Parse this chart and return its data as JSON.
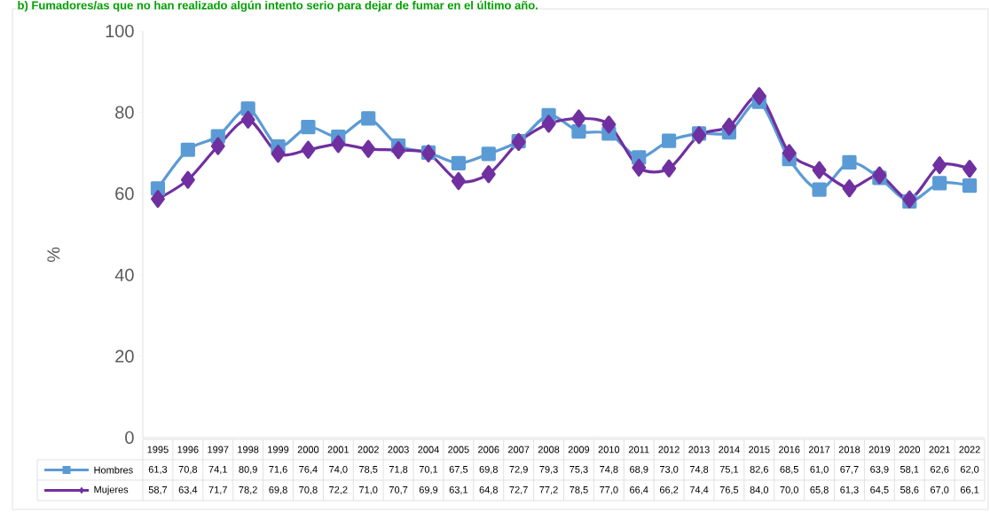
{
  "chart_data": {
    "type": "line",
    "title": "b) Fumadores/as que no han realizado algún intento serio para dejar de fumar en el último año.",
    "ylabel": "%",
    "categories": [
      "1995",
      "1996",
      "1997",
      "1998",
      "1999",
      "2000",
      "2001",
      "2002",
      "2003",
      "2004",
      "2005",
      "2006",
      "2007",
      "2008",
      "2009",
      "2010",
      "2011",
      "2012",
      "2013",
      "2014",
      "2015",
      "2016",
      "2017",
      "2018",
      "2019",
      "2020",
      "2021",
      "2022"
    ],
    "series": [
      {
        "name": "Hombres",
        "color": "#5b9bd5",
        "marker": "square",
        "values": [
          61.3,
          70.8,
          74.1,
          80.9,
          71.6,
          76.4,
          74.0,
          78.5,
          71.8,
          70.1,
          67.5,
          69.8,
          72.9,
          79.3,
          75.3,
          74.8,
          68.9,
          73.0,
          74.8,
          75.1,
          82.6,
          68.5,
          61.0,
          67.7,
          63.9,
          58.1,
          62.6,
          62.0
        ],
        "value_labels": [
          "61,3",
          "70,8",
          "74,1",
          "80,9",
          "71,6",
          "76,4",
          "74,0",
          "78,5",
          "71,8",
          "70,1",
          "67,5",
          "69,8",
          "72,9",
          "79,3",
          "75,3",
          "74,8",
          "68,9",
          "73,0",
          "74,8",
          "75,1",
          "82,6",
          "68,5",
          "61,0",
          "67,7",
          "63,9",
          "58,1",
          "62,6",
          "62,0"
        ]
      },
      {
        "name": "Mujeres",
        "color": "#7030a0",
        "marker": "diamond",
        "values": [
          58.7,
          63.4,
          71.7,
          78.2,
          69.8,
          70.8,
          72.2,
          71.0,
          70.7,
          69.9,
          63.1,
          64.8,
          72.7,
          77.2,
          78.5,
          77.0,
          66.4,
          66.2,
          74.4,
          76.5,
          84.0,
          70.0,
          65.8,
          61.3,
          64.5,
          58.6,
          67.0,
          66.1
        ],
        "value_labels": [
          "58,7",
          "63,4",
          "71,7",
          "78,2",
          "69,8",
          "70,8",
          "72,2",
          "71,0",
          "70,7",
          "69,9",
          "63,1",
          "64,8",
          "72,7",
          "77,2",
          "78,5",
          "77,0",
          "66,4",
          "66,2",
          "74,4",
          "76,5",
          "84,0",
          "70,0",
          "65,8",
          "61,3",
          "64,5",
          "58,6",
          "67,0",
          "66,1"
        ]
      }
    ],
    "ylim": [
      0,
      100
    ],
    "yticks": [
      0,
      20,
      40,
      60,
      80,
      100
    ],
    "grid": false,
    "legend": "bottom",
    "line_style": "solid"
  }
}
